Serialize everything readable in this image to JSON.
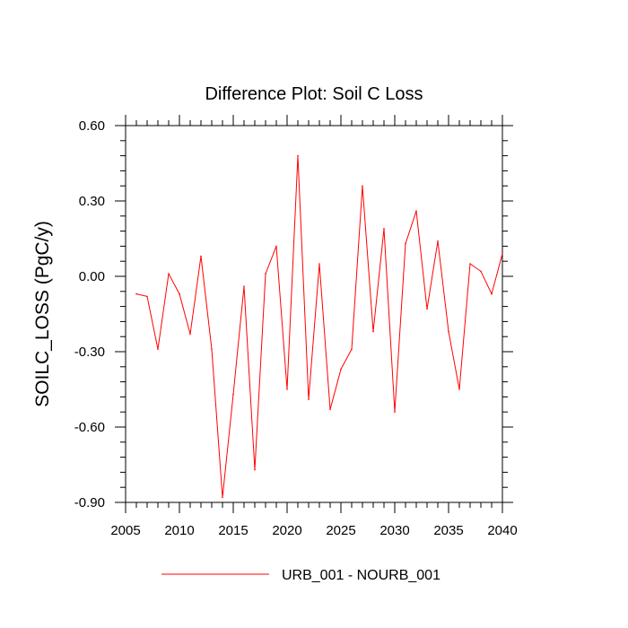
{
  "chart_data": {
    "type": "line",
    "title": "Difference Plot: Soil C Loss",
    "xlabel": "",
    "ylabel": "SOILC_LOSS  (PgC/y)",
    "xlim": [
      2005,
      2040
    ],
    "ylim": [
      -0.9,
      0.6
    ],
    "x_ticks": [
      2005,
      2010,
      2015,
      2020,
      2025,
      2030,
      2035,
      2040
    ],
    "x_tick_labels": [
      "2005",
      "2010",
      "2015",
      "2020",
      "2025",
      "2030",
      "2035",
      "2040"
    ],
    "y_ticks": [
      0.6,
      0.3,
      0.0,
      -0.3,
      -0.6,
      -0.9
    ],
    "y_tick_labels": [
      "0.60",
      "0.30",
      "0.00",
      "-0.30",
      "-0.60",
      "-0.90"
    ],
    "grid": false,
    "legend_position": "bottom-center",
    "series": [
      {
        "name": "URB_001 - NOURB_001",
        "color": "#ff0000",
        "x": [
          2006,
          2007,
          2008,
          2009,
          2010,
          2011,
          2012,
          2013,
          2014,
          2015,
          2016,
          2017,
          2018,
          2019,
          2020,
          2021,
          2022,
          2023,
          2024,
          2025,
          2026,
          2027,
          2028,
          2029,
          2030,
          2031,
          2032,
          2033,
          2034,
          2035,
          2036,
          2037,
          2038,
          2039,
          2040
        ],
        "values": [
          -0.07,
          -0.08,
          -0.29,
          0.01,
          -0.07,
          -0.23,
          0.08,
          -0.29,
          -0.88,
          -0.47,
          -0.04,
          -0.77,
          0.01,
          0.12,
          -0.45,
          0.48,
          -0.49,
          0.05,
          -0.53,
          -0.37,
          -0.29,
          0.36,
          -0.22,
          0.19,
          -0.54,
          0.13,
          0.26,
          -0.13,
          0.14,
          -0.22,
          -0.45,
          0.05,
          0.02,
          -0.07,
          0.09
        ]
      }
    ]
  }
}
